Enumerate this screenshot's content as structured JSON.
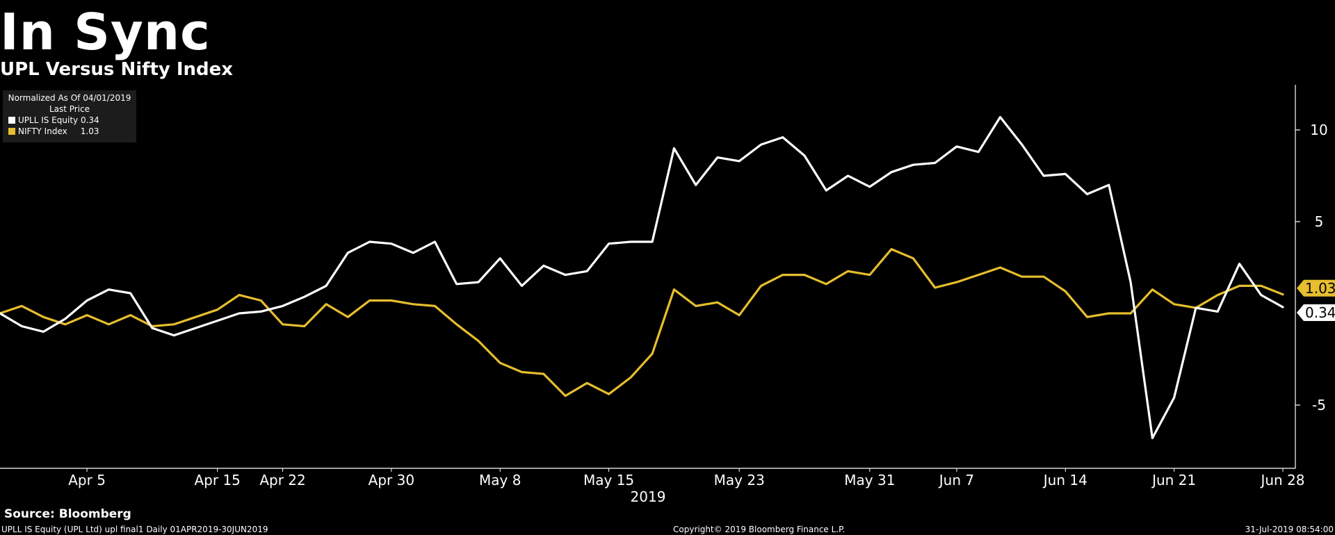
{
  "title": "In Sync",
  "subtitle": "UPL Versus Nifty Index",
  "legend": {
    "header_line1": "Normalized As Of 04/01/2019",
    "header_line2": "Last Price",
    "items": [
      {
        "label": "UPLL IS Equity",
        "value": "0.34",
        "color": "#ffffff"
      },
      {
        "label": "NIFTY Index",
        "value": "1.03",
        "color": "#e6be2e"
      }
    ]
  },
  "source": "Source: Bloomberg",
  "footer": {
    "left": "UPLL IS Equity (UPL Ltd) upl final1  Daily 01APR2019-30JUN2019",
    "center": "Copyright© 2019 Bloomberg Finance L.P.",
    "right": "31-Jul-2019 08:54:00"
  },
  "chart_data": {
    "type": "line",
    "xlabel": "2019",
    "ylim": [
      -8.5,
      12.5
    ],
    "yticks": [
      -5,
      5,
      10
    ],
    "x_tick_labels": [
      {
        "label": "Apr 5",
        "index": 4
      },
      {
        "label": "Apr 15",
        "index": 10
      },
      {
        "label": "Apr 22",
        "index": 13
      },
      {
        "label": "Apr 30",
        "index": 18
      },
      {
        "label": "May 8",
        "index": 23
      },
      {
        "label": "May 15",
        "index": 28
      },
      {
        "label": "May 23",
        "index": 34
      },
      {
        "label": "May 31",
        "index": 40
      },
      {
        "label": "Jun 7",
        "index": 44
      },
      {
        "label": "Jun 14",
        "index": 49
      },
      {
        "label": "Jun 21",
        "index": 54
      },
      {
        "label": "Jun 28",
        "index": 59
      }
    ],
    "last_value_labels": [
      "1.03",
      "0.34"
    ],
    "series": [
      {
        "name": "UPLL IS Equity",
        "color": "#ffffff",
        "values": [
          0.0,
          -0.7,
          -1.0,
          -0.3,
          0.7,
          1.3,
          1.1,
          -0.8,
          -1.2,
          -0.8,
          -0.4,
          0.0,
          0.1,
          0.4,
          0.9,
          1.5,
          3.3,
          3.9,
          3.8,
          3.3,
          3.9,
          1.6,
          1.7,
          3.0,
          1.5,
          2.6,
          2.1,
          2.3,
          3.8,
          3.9,
          3.9,
          9.0,
          7.0,
          8.5,
          8.3,
          9.2,
          9.6,
          8.6,
          6.7,
          7.5,
          6.9,
          7.7,
          8.1,
          8.2,
          9.1,
          8.8,
          10.7,
          9.2,
          7.5,
          7.6,
          6.5,
          7.0,
          1.7,
          -6.8,
          -4.6,
          0.3,
          0.1,
          2.7,
          1.0,
          0.34
        ]
      },
      {
        "name": "NIFTY Index",
        "color": "#e6be2e",
        "values": [
          0.0,
          0.4,
          -0.2,
          -0.6,
          -0.1,
          -0.6,
          -0.1,
          -0.7,
          -0.6,
          -0.2,
          0.2,
          1.0,
          0.7,
          -0.6,
          -0.7,
          0.5,
          -0.2,
          0.7,
          0.7,
          0.5,
          0.4,
          -0.6,
          -1.5,
          -2.7,
          -3.2,
          -3.3,
          -4.5,
          -3.8,
          -4.4,
          -3.5,
          -2.2,
          1.3,
          0.4,
          0.6,
          -0.1,
          1.5,
          2.1,
          2.1,
          1.6,
          2.3,
          2.1,
          3.5,
          3.0,
          1.4,
          1.7,
          2.1,
          2.5,
          2.0,
          2.0,
          1.2,
          -0.2,
          0.0,
          0.0,
          1.3,
          0.5,
          0.3,
          1.0,
          1.5,
          1.5,
          1.03
        ]
      }
    ]
  }
}
